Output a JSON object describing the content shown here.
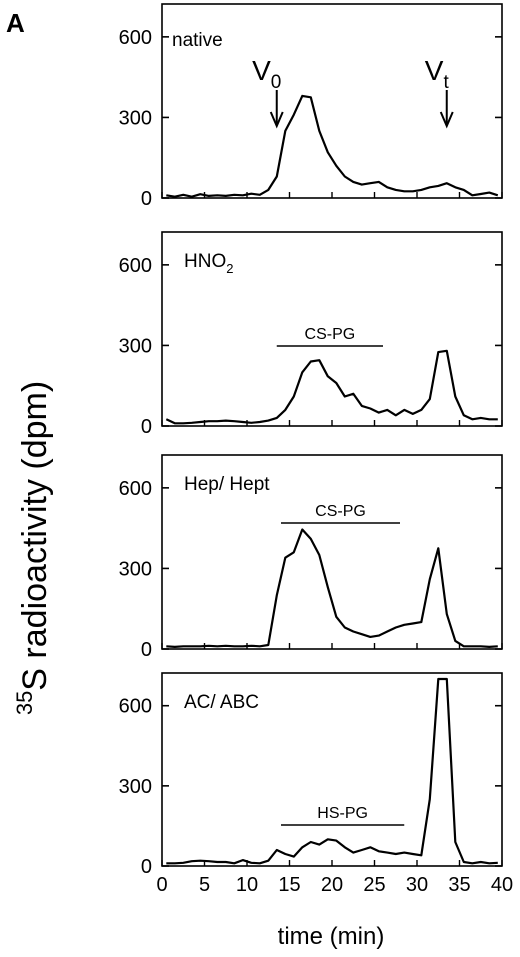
{
  "figure": {
    "label": "A",
    "ylabel_sup": "35",
    "ylabel_main": "S radioactivity (dpm)",
    "xlabel": "time (min)"
  },
  "chart_data": [
    {
      "type": "line",
      "panel": "native",
      "panel_label": "native",
      "xlim": [
        0,
        40
      ],
      "ylim": [
        0,
        700
      ],
      "yticks": [
        0,
        300,
        600
      ],
      "x": [
        0.5,
        1.5,
        2.5,
        3.5,
        4.5,
        5.5,
        6.5,
        7.5,
        8.5,
        9.5,
        10.5,
        11.5,
        12.5,
        13.5,
        14.5,
        15.5,
        16.5,
        17.5,
        18.5,
        19.5,
        20.5,
        21.5,
        22.5,
        23.5,
        24.5,
        25.5,
        26.5,
        27.5,
        28.5,
        29.5,
        30.5,
        31.5,
        32.5,
        33.5,
        34.5,
        35.5,
        36.5,
        37.5,
        38.5,
        39.5
      ],
      "y": [
        10,
        5,
        12,
        5,
        14,
        8,
        10,
        8,
        12,
        10,
        16,
        12,
        30,
        80,
        250,
        310,
        380,
        375,
        250,
        170,
        120,
        80,
        60,
        50,
        55,
        60,
        40,
        30,
        25,
        25,
        30,
        40,
        45,
        55,
        40,
        30,
        10,
        15,
        20,
        10
      ],
      "annotations": [
        {
          "v": "V",
          "sub": "0",
          "x": 13.5
        },
        {
          "v": "V",
          "sub": "t",
          "x": 33.5
        }
      ]
    },
    {
      "type": "line",
      "panel": "HNO2",
      "panel_label_main": "HNO",
      "panel_label_sub": "2",
      "xlim": [
        0,
        40
      ],
      "ylim": [
        0,
        700
      ],
      "yticks": [
        0,
        300,
        600
      ],
      "x": [
        0.5,
        1.5,
        2.5,
        3.5,
        4.5,
        5.5,
        6.5,
        7.5,
        8.5,
        9.5,
        10.5,
        11.5,
        12.5,
        13.5,
        14.5,
        15.5,
        16.5,
        17.5,
        18.5,
        19.5,
        20.5,
        21.5,
        22.5,
        23.5,
        24.5,
        25.5,
        26.5,
        27.5,
        28.5,
        29.5,
        30.5,
        31.5,
        32.5,
        33.5,
        34.5,
        35.5,
        36.5,
        37.5,
        38.5,
        39.5
      ],
      "y": [
        25,
        10,
        10,
        12,
        15,
        18,
        18,
        20,
        18,
        15,
        12,
        15,
        20,
        30,
        60,
        110,
        200,
        240,
        245,
        185,
        160,
        110,
        120,
        75,
        65,
        50,
        60,
        40,
        60,
        45,
        60,
        100,
        275,
        280,
        110,
        40,
        25,
        30,
        25,
        25
      ],
      "bar": {
        "label": "CS-PG",
        "x": [
          13.5,
          26
        ]
      }
    },
    {
      "type": "line",
      "panel": "Hep/ Hept",
      "panel_label": "Hep/ Hept",
      "xlim": [
        0,
        40
      ],
      "ylim": [
        0,
        700
      ],
      "yticks": [
        0,
        300,
        600
      ],
      "x": [
        0.5,
        1.5,
        2.5,
        3.5,
        4.5,
        5.5,
        6.5,
        7.5,
        8.5,
        9.5,
        10.5,
        11.5,
        12.5,
        13.5,
        14.5,
        15.5,
        16.5,
        17.5,
        18.5,
        19.5,
        20.5,
        21.5,
        22.5,
        23.5,
        24.5,
        25.5,
        26.5,
        27.5,
        28.5,
        29.5,
        30.5,
        31.5,
        32.5,
        33.5,
        34.5,
        35.5,
        36.5,
        37.5,
        38.5,
        39.5
      ],
      "y": [
        10,
        8,
        10,
        10,
        10,
        12,
        10,
        12,
        10,
        10,
        12,
        10,
        15,
        200,
        340,
        360,
        445,
        410,
        350,
        230,
        120,
        80,
        65,
        55,
        45,
        50,
        65,
        80,
        90,
        95,
        100,
        260,
        375,
        130,
        30,
        10,
        10,
        10,
        8,
        10
      ],
      "bar": {
        "label": "CS-PG",
        "x": [
          14,
          28
        ]
      }
    },
    {
      "type": "line",
      "panel": "AC/ ABC",
      "panel_label": "AC/ ABC",
      "xlim": [
        0,
        40
      ],
      "ylim": [
        0,
        700
      ],
      "yticks": [
        0,
        300,
        600
      ],
      "x": [
        0.5,
        1.5,
        2.5,
        3.5,
        4.5,
        5.5,
        6.5,
        7.5,
        8.5,
        9.5,
        10.5,
        11.5,
        12.5,
        13.5,
        14.5,
        15.5,
        16.5,
        17.5,
        18.5,
        19.5,
        20.5,
        21.5,
        22.5,
        23.5,
        24.5,
        25.5,
        26.5,
        27.5,
        28.5,
        29.5,
        30.5,
        31.5,
        32.5,
        33.5,
        34.5,
        35.5,
        36.5,
        37.5,
        38.5,
        39.5
      ],
      "y": [
        10,
        10,
        12,
        18,
        20,
        18,
        15,
        15,
        10,
        22,
        12,
        10,
        20,
        60,
        45,
        35,
        70,
        90,
        80,
        100,
        95,
        70,
        50,
        60,
        70,
        55,
        50,
        45,
        50,
        45,
        40,
        250,
        700,
        700,
        90,
        15,
        10,
        15,
        10,
        12
      ],
      "bar": {
        "label": "HS-PG",
        "x": [
          14,
          28.5
        ]
      },
      "xticks": [
        0,
        5,
        10,
        15,
        20,
        25,
        30,
        35,
        40
      ]
    }
  ]
}
